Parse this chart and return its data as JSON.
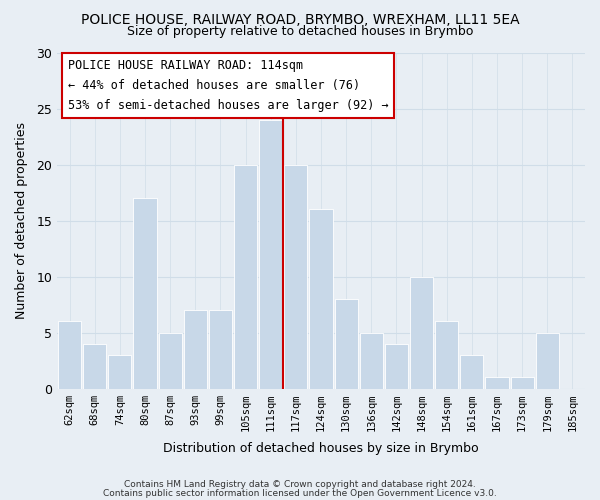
{
  "title": "POLICE HOUSE, RAILWAY ROAD, BRYMBO, WREXHAM, LL11 5EA",
  "subtitle": "Size of property relative to detached houses in Brymbo",
  "xlabel": "Distribution of detached houses by size in Brymbo",
  "ylabel": "Number of detached properties",
  "bar_labels": [
    "62sqm",
    "68sqm",
    "74sqm",
    "80sqm",
    "87sqm",
    "93sqm",
    "99sqm",
    "105sqm",
    "111sqm",
    "117sqm",
    "124sqm",
    "130sqm",
    "136sqm",
    "142sqm",
    "148sqm",
    "154sqm",
    "161sqm",
    "167sqm",
    "173sqm",
    "179sqm",
    "185sqm"
  ],
  "bar_values": [
    6,
    4,
    3,
    17,
    5,
    7,
    7,
    20,
    24,
    20,
    16,
    8,
    5,
    4,
    10,
    6,
    3,
    1,
    1,
    5,
    0
  ],
  "bar_color": "#c8d8e8",
  "bar_edge_color": "#ffffff",
  "grid_color": "#d0dde8",
  "vline_x_index": 8,
  "vline_color": "#cc0000",
  "annotation_title": "POLICE HOUSE RAILWAY ROAD: 114sqm",
  "annotation_line1": "← 44% of detached houses are smaller (76)",
  "annotation_line2": "53% of semi-detached houses are larger (92) →",
  "annotation_box_facecolor": "#ffffff",
  "annotation_box_edgecolor": "#cc0000",
  "ylim": [
    0,
    30
  ],
  "yticks": [
    0,
    5,
    10,
    15,
    20,
    25,
    30
  ],
  "footer1": "Contains HM Land Registry data © Crown copyright and database right 2024.",
  "footer2": "Contains public sector information licensed under the Open Government Licence v3.0.",
  "background_color": "#e8eef4",
  "plot_bg_color": "#e8eef4"
}
